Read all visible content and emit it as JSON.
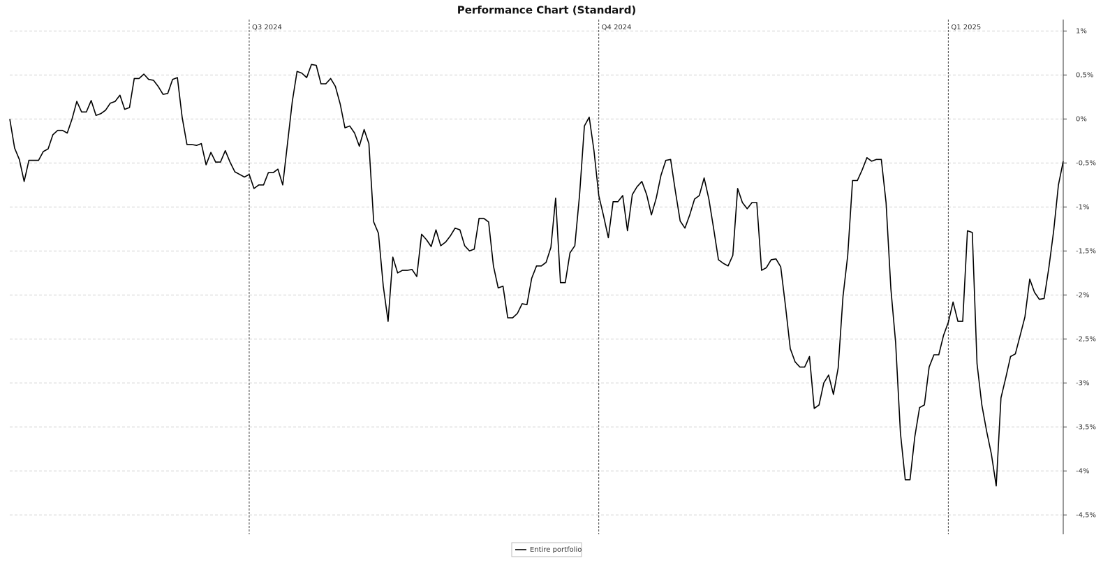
{
  "chart_data": {
    "type": "line",
    "title": "Performance Chart (Standard)",
    "categories": [
      null,
      null,
      null,
      null,
      null,
      null,
      null,
      null,
      null,
      null,
      null,
      null,
      null,
      null,
      null,
      null,
      null,
      null,
      null,
      null,
      null,
      null,
      null,
      null,
      null,
      null,
      null,
      null,
      null,
      null,
      null,
      null,
      null,
      null,
      null,
      null,
      null,
      null,
      null,
      null,
      null,
      null,
      null,
      null,
      null,
      null,
      null,
      null,
      null,
      null,
      "Q3 2024",
      null,
      null,
      null,
      null,
      null,
      null,
      null,
      null,
      null,
      null,
      null,
      null,
      null,
      null,
      null,
      null,
      null,
      null,
      null,
      null,
      null,
      null,
      null,
      null,
      null,
      null,
      null,
      null,
      null,
      null,
      null,
      null,
      null,
      null,
      null,
      null,
      null,
      null,
      null,
      null,
      null,
      null,
      null,
      null,
      null,
      null,
      null,
      null,
      null,
      null,
      null,
      null,
      null,
      null,
      null,
      null,
      null,
      null,
      null,
      null,
      null,
      null,
      null,
      null,
      null,
      null,
      null,
      null,
      null,
      null,
      null,
      null,
      "Q4 2024",
      null,
      null,
      null,
      null,
      null,
      null,
      null,
      null,
      null,
      null,
      null,
      null,
      null,
      null,
      null,
      null,
      null,
      null,
      null,
      null,
      null,
      null,
      null,
      null,
      null,
      null,
      null,
      null,
      null,
      null,
      null,
      null,
      null,
      null,
      null,
      null,
      null,
      null,
      null,
      null,
      null,
      null,
      null,
      null,
      null,
      null,
      null,
      null,
      null,
      null,
      null,
      null,
      null,
      null,
      null,
      null,
      null,
      null,
      null,
      null,
      null,
      null,
      null,
      null,
      null,
      null,
      null,
      null,
      null,
      null,
      null,
      null,
      "Q1 2025",
      null,
      null,
      null,
      null,
      null,
      null,
      null,
      null,
      null,
      null,
      null,
      null,
      null,
      null,
      null,
      null,
      null,
      null,
      null,
      null,
      null,
      null,
      null,
      null
    ],
    "series": [
      {
        "name": "Entire portfolio",
        "color": "#000000",
        "values": [
          0,
          -0.33,
          -0.46,
          -0.71,
          -0.47,
          -0.47,
          -0.47,
          -0.37,
          -0.34,
          -0.18,
          -0.13,
          -0.13,
          -0.16,
          0,
          0.2,
          0.08,
          0.08,
          0.21,
          0.04,
          0.06,
          0.1,
          0.18,
          0.2,
          0.27,
          0.11,
          0.13,
          0.46,
          0.46,
          0.51,
          0.45,
          0.44,
          0.37,
          0.28,
          0.29,
          0.45,
          0.47,
          0.02,
          -0.29,
          -0.29,
          -0.3,
          -0.28,
          -0.52,
          -0.38,
          -0.49,
          -0.49,
          -0.36,
          -0.49,
          -0.6,
          -0.63,
          -0.66,
          -0.63,
          -0.79,
          -0.75,
          -0.75,
          -0.61,
          -0.61,
          -0.57,
          -0.75,
          -0.28,
          0.2,
          0.54,
          0.52,
          0.47,
          0.62,
          0.61,
          0.4,
          0.4,
          0.46,
          0.37,
          0.17,
          -0.1,
          -0.08,
          -0.16,
          -0.31,
          -0.12,
          -0.28,
          -1.17,
          -1.3,
          -1.9,
          -2.3,
          -1.57,
          -1.75,
          -1.72,
          -1.72,
          -1.71,
          -1.79,
          -1.31,
          -1.37,
          -1.45,
          -1.26,
          -1.44,
          -1.4,
          -1.33,
          -1.24,
          -1.26,
          -1.44,
          -1.5,
          -1.48,
          -1.13,
          -1.13,
          -1.17,
          -1.67,
          -1.92,
          -1.9,
          -2.26,
          -2.26,
          -2.21,
          -2.1,
          -2.11,
          -1.81,
          -1.67,
          -1.67,
          -1.63,
          -1.46,
          -0.9,
          -1.86,
          -1.86,
          -1.52,
          -1.44,
          -0.86,
          -0.08,
          0.02,
          -0.36,
          -0.87,
          -1.1,
          -1.35,
          -0.94,
          -0.94,
          -0.87,
          -1.27,
          -0.86,
          -0.77,
          -0.71,
          -0.86,
          -1.09,
          -0.9,
          -0.64,
          -0.47,
          -0.46,
          -0.82,
          -1.16,
          -1.24,
          -1.09,
          -0.91,
          -0.87,
          -0.67,
          -0.91,
          -1.25,
          -1.6,
          -1.64,
          -1.67,
          -1.55,
          -0.79,
          -0.95,
          -1.02,
          -0.95,
          -0.95,
          -1.72,
          -1.69,
          -1.6,
          -1.59,
          -1.68,
          -2.13,
          -2.61,
          -2.76,
          -2.82,
          -2.82,
          -2.7,
          -3.29,
          -3.25,
          -3,
          -2.91,
          -3.13,
          -2.83,
          -2.02,
          -1.55,
          -0.7,
          -0.7,
          -0.58,
          -0.44,
          -0.48,
          -0.46,
          -0.46,
          -0.95,
          -1.93,
          -2.54,
          -3.57,
          -4.1,
          -4.1,
          -3.61,
          -3.28,
          -3.25,
          -2.82,
          -2.68,
          -2.68,
          -2.46,
          -2.31,
          -2.08,
          -2.3,
          -2.3,
          -1.27,
          -1.29,
          -2.78,
          -3.25,
          -3.55,
          -3.81,
          -4.17,
          -3.17,
          -2.94,
          -2.7,
          -2.67,
          -2.46,
          -2.25,
          -1.82,
          -1.97,
          -2.05,
          -2.04,
          -1.69,
          -1.27,
          -0.75,
          -0.48
        ]
      }
    ],
    "ylim": [
      -4.72,
      1.13
    ],
    "yticks": [
      {
        "value": 1,
        "label": "1%"
      },
      {
        "value": 0.5,
        "label": "0,5%"
      },
      {
        "value": 0,
        "label": "0%"
      },
      {
        "value": -0.5,
        "label": "-0,5%"
      },
      {
        "value": -1,
        "label": "-1%"
      },
      {
        "value": -1.5,
        "label": "-1,5%"
      },
      {
        "value": -2,
        "label": "-2%"
      },
      {
        "value": -2.5,
        "label": "-2,5%"
      },
      {
        "value": -3,
        "label": "-3%"
      },
      {
        "value": -3.5,
        "label": "-3,5%"
      },
      {
        "value": -4,
        "label": "-4%"
      },
      {
        "value": -4.5,
        "label": "-4,5%"
      }
    ],
    "grid": true,
    "legend": "bottom"
  }
}
